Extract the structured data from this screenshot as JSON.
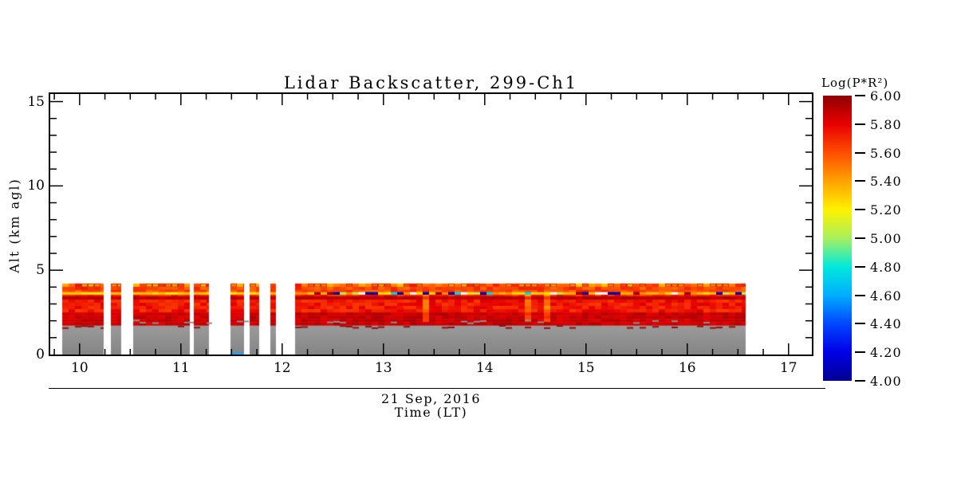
{
  "page": {
    "background": "#FFFFFF"
  },
  "chart_data": {
    "type": "heatmap",
    "title": "Lidar Backscatter, 299-Ch1",
    "xlabel": "Time (LT)",
    "date_label": "21 Sep, 2016",
    "ylabel": "Alt (km agl)",
    "x_range": [
      9.71,
      17.23
    ],
    "y_range": [
      0,
      15.45
    ],
    "x_ticks": [
      {
        "value": 10,
        "label": "10"
      },
      {
        "value": 11,
        "label": "11"
      },
      {
        "value": 12,
        "label": "12"
      },
      {
        "value": 13,
        "label": "13"
      },
      {
        "value": 14,
        "label": "14"
      },
      {
        "value": 15,
        "label": "15"
      },
      {
        "value": 16,
        "label": "16"
      },
      {
        "value": 17,
        "label": "17"
      }
    ],
    "x_minor_interval": 0.25,
    "y_ticks": [
      {
        "value": 0,
        "label": "0"
      },
      {
        "value": 5,
        "label": "5"
      },
      {
        "value": 10,
        "label": "10"
      },
      {
        "value": 15,
        "label": "15"
      }
    ],
    "y_minor_interval": 1,
    "grid": false,
    "colorbar": {
      "title": "Log(P*R²)",
      "range": [
        4.0,
        6.0
      ],
      "ticks": [
        {
          "value": 6.0,
          "label": "6.00"
        },
        {
          "value": 5.8,
          "label": "5.80"
        },
        {
          "value": 5.6,
          "label": "5.60"
        },
        {
          "value": 5.4,
          "label": "5.40"
        },
        {
          "value": 5.2,
          "label": "5.20"
        },
        {
          "value": 5.0,
          "label": "5.00"
        },
        {
          "value": 4.8,
          "label": "4.80"
        },
        {
          "value": 4.6,
          "label": "4.60"
        },
        {
          "value": 4.4,
          "label": "4.40"
        },
        {
          "value": 4.2,
          "label": "4.20"
        },
        {
          "value": 4.0,
          "label": "4.00"
        }
      ]
    },
    "colormap": {
      "name": "rainbow",
      "stops": [
        [
          4.0,
          "#000092"
        ],
        [
          4.2,
          "#0000E6"
        ],
        [
          4.4,
          "#0047FF"
        ],
        [
          4.6,
          "#00AEFF"
        ],
        [
          4.8,
          "#00E9DC"
        ],
        [
          5.0,
          "#A8F05F"
        ],
        [
          5.2,
          "#FFF200"
        ],
        [
          5.4,
          "#FFA300"
        ],
        [
          5.6,
          "#FF4E00"
        ],
        [
          5.8,
          "#E90000"
        ],
        [
          6.0,
          "#8F0000"
        ]
      ]
    },
    "segments": [
      [
        9.83,
        10.24
      ],
      [
        10.31,
        10.41
      ],
      [
        10.53,
        11.09
      ],
      [
        11.13,
        11.28
      ],
      [
        11.49,
        11.62
      ],
      [
        11.68,
        11.77
      ],
      [
        11.88,
        11.94
      ],
      [
        12.13,
        16.58
      ]
    ],
    "profile_layers": [
      {
        "alt": [
          4.02,
          4.22
        ],
        "value": 5.52,
        "jitter": 0.24,
        "boxed": true
      },
      {
        "alt": [
          3.7,
          4.02
        ],
        "value": 5.63,
        "jitter": 0.1
      },
      {
        "alt": [
          3.45,
          3.7
        ],
        "value": 5.7,
        "jitter": 0.08
      },
      {
        "alt": [
          3.55,
          3.7
        ],
        "type": "bright-layer"
      },
      {
        "alt": [
          3.3,
          3.45
        ],
        "value": 5.9,
        "jitter": 0.04
      },
      {
        "alt": [
          2.55,
          3.3
        ],
        "value": 5.74,
        "jitter": 0.09
      },
      {
        "alt": [
          1.7,
          2.55
        ],
        "value": 5.87,
        "jitter": 0.06
      }
    ],
    "features": {
      "band_top_km": 4.21,
      "gray_top_km": 1.8,
      "bright_streak_times": [
        13.42,
        14.43,
        14.6
      ],
      "blue_patch": {
        "t": [
          11.49,
          11.62
        ],
        "alt": [
          0,
          0.14
        ],
        "color": "#2A9FE8"
      },
      "gray_fill": {
        "top": "#9C9C9C",
        "bottom": "#858585"
      }
    }
  }
}
